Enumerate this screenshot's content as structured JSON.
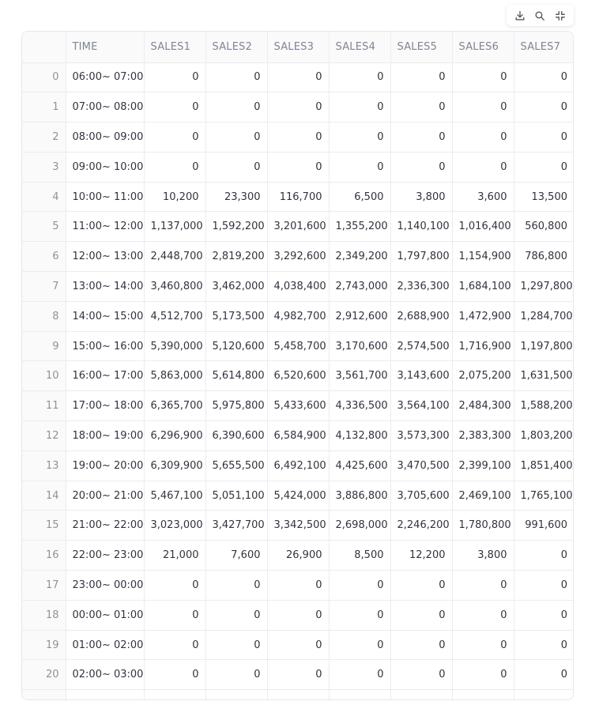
{
  "toolbar": {
    "download_icon": "download-icon",
    "search_icon": "search-icon",
    "fullscreen_icon": "fullscreen-exit-icon"
  },
  "table": {
    "columns": [
      "",
      "TIME",
      "SALES1",
      "SALES2",
      "SALES3",
      "SALES4",
      "SALES5",
      "SALES6",
      "SALES7"
    ],
    "rows": [
      [
        "0",
        "06:00~ 07:00",
        "0",
        "0",
        "0",
        "0",
        "0",
        "0",
        "0"
      ],
      [
        "1",
        "07:00~ 08:00",
        "0",
        "0",
        "0",
        "0",
        "0",
        "0",
        "0"
      ],
      [
        "2",
        "08:00~ 09:00",
        "0",
        "0",
        "0",
        "0",
        "0",
        "0",
        "0"
      ],
      [
        "3",
        "09:00~ 10:00",
        "0",
        "0",
        "0",
        "0",
        "0",
        "0",
        "0"
      ],
      [
        "4",
        "10:00~ 11:00",
        "10,200",
        "23,300",
        "116,700",
        "6,500",
        "3,800",
        "3,600",
        "13,500"
      ],
      [
        "5",
        "11:00~ 12:00",
        "1,137,000",
        "1,592,200",
        "3,201,600",
        "1,355,200",
        "1,140,100",
        "1,016,400",
        "560,800"
      ],
      [
        "6",
        "12:00~ 13:00",
        "2,448,700",
        "2,819,200",
        "3,292,600",
        "2,349,200",
        "1,797,800",
        "1,154,900",
        "786,800"
      ],
      [
        "7",
        "13:00~ 14:00",
        "3,460,800",
        "3,462,000",
        "4,038,400",
        "2,743,000",
        "2,336,300",
        "1,684,100",
        "1,297,800"
      ],
      [
        "8",
        "14:00~ 15:00",
        "4,512,700",
        "5,173,500",
        "4,982,700",
        "2,912,600",
        "2,688,900",
        "1,472,900",
        "1,284,700"
      ],
      [
        "9",
        "15:00~ 16:00",
        "5,390,000",
        "5,120,600",
        "5,458,700",
        "3,170,600",
        "2,574,500",
        "1,716,900",
        "1,197,800"
      ],
      [
        "10",
        "16:00~ 17:00",
        "5,863,000",
        "5,614,800",
        "6,520,600",
        "3,561,700",
        "3,143,600",
        "2,075,200",
        "1,631,500"
      ],
      [
        "11",
        "17:00~ 18:00",
        "6,365,700",
        "5,975,800",
        "5,433,600",
        "4,336,500",
        "3,564,100",
        "2,484,300",
        "1,588,200"
      ],
      [
        "12",
        "18:00~ 19:00",
        "6,296,900",
        "6,390,600",
        "6,584,900",
        "4,132,800",
        "3,573,300",
        "2,383,300",
        "1,803,200"
      ],
      [
        "13",
        "19:00~ 20:00",
        "6,309,900",
        "5,655,500",
        "6,492,100",
        "4,425,600",
        "3,470,500",
        "2,399,100",
        "1,851,400"
      ],
      [
        "14",
        "20:00~ 21:00",
        "5,467,100",
        "5,051,100",
        "5,424,000",
        "3,886,800",
        "3,705,600",
        "2,469,100",
        "1,765,100"
      ],
      [
        "15",
        "21:00~ 22:00",
        "3,023,000",
        "3,427,700",
        "3,342,500",
        "2,698,000",
        "2,246,200",
        "1,780,800",
        "991,600"
      ],
      [
        "16",
        "22:00~ 23:00",
        "21,000",
        "7,600",
        "26,900",
        "8,500",
        "12,200",
        "3,800",
        "0"
      ],
      [
        "17",
        "23:00~ 00:00",
        "0",
        "0",
        "0",
        "0",
        "0",
        "0",
        "0"
      ],
      [
        "18",
        "00:00~ 01:00",
        "0",
        "0",
        "0",
        "0",
        "0",
        "0",
        "0"
      ],
      [
        "19",
        "01:00~ 02:00",
        "0",
        "0",
        "0",
        "0",
        "0",
        "0",
        "0"
      ],
      [
        "20",
        "02:00~ 03:00",
        "0",
        "0",
        "0",
        "0",
        "0",
        "0",
        "0"
      ]
    ]
  }
}
